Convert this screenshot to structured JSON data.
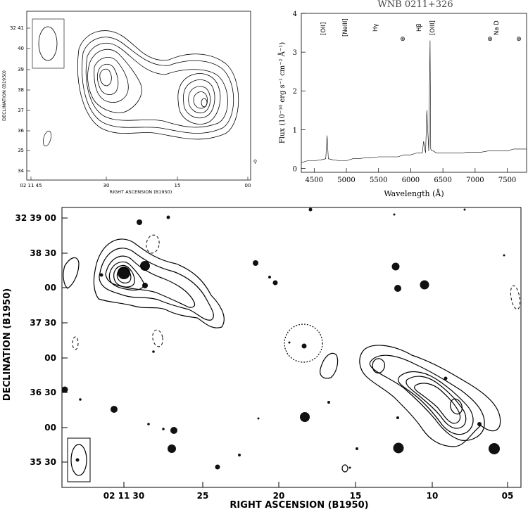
{
  "top_left": {
    "ylabel": "DECLINATION (B1950)",
    "xlabel": "RIGHT ASCENSION (B1950)",
    "y_ticks": [
      "32 41",
      "40",
      "39",
      "38",
      "37",
      "36",
      "35",
      "34"
    ],
    "x_ticks": [
      "02 11 45",
      "30",
      "15",
      "00"
    ]
  },
  "spectrum": {
    "title": "WNB 0211+326",
    "ylabel": "Flux (10⁻¹⁶ erg s⁻¹ cm⁻² Å⁻¹)",
    "xlabel": "Wavelength (Å)",
    "y_ticks": [
      "0",
      "1",
      "2",
      "3",
      "4"
    ],
    "x_ticks": [
      "4500",
      "5000",
      "5500",
      "6000",
      "6500",
      "7000",
      "7500"
    ],
    "line_labels": [
      "[OII]",
      "[NeIII]",
      "Hγ",
      "Hβ",
      "[OIII]",
      "Na D"
    ],
    "chart_data": {
      "type": "line",
      "title": "WNB 0211+326",
      "xlabel": "Wavelength (Å)",
      "ylabel": "Flux (10⁻¹⁶ erg s⁻¹ cm⁻² Å⁻¹)",
      "xlim": [
        4300,
        7800
      ],
      "ylim": [
        -0.1,
        4
      ],
      "series": [
        {
          "x": [
            4300,
            4400,
            4500,
            4600,
            4680,
            4700,
            4720,
            4800,
            4900,
            5000,
            5100,
            5200,
            5300,
            5400,
            5500,
            5600,
            5700,
            5800,
            5900,
            6000,
            6100,
            6180,
            6200,
            6230,
            6250,
            6280,
            6300,
            6310,
            6330,
            6350,
            6400,
            6500,
            6600,
            6700,
            6800,
            6900,
            7000,
            7100,
            7200,
            7300,
            7400,
            7500,
            7600,
            7700,
            7800
          ],
          "y": [
            0.15,
            0.2,
            0.2,
            0.22,
            0.25,
            0.85,
            0.25,
            0.22,
            0.2,
            0.2,
            0.25,
            0.25,
            0.28,
            0.28,
            0.3,
            0.3,
            0.3,
            0.3,
            0.35,
            0.35,
            0.4,
            0.4,
            0.7,
            0.4,
            1.5,
            0.45,
            3.3,
            0.5,
            0.45,
            0.45,
            0.4,
            0.4,
            0.4,
            0.4,
            0.4,
            0.42,
            0.42,
            0.42,
            0.45,
            0.45,
            0.45,
            0.45,
            0.5,
            0.5,
            0.5
          ]
        }
      ]
    }
  },
  "bottom": {
    "ylabel": "DECLINATION (B1950)",
    "xlabel": "RIGHT ASCENSION (B1950)",
    "y_ticks": [
      "32 39 00",
      "38 30",
      "00",
      "37 30",
      "00",
      "36 30",
      "00",
      "35 30"
    ],
    "x_ticks": [
      "02 11 30",
      "25",
      "20",
      "15",
      "10",
      "05"
    ]
  }
}
